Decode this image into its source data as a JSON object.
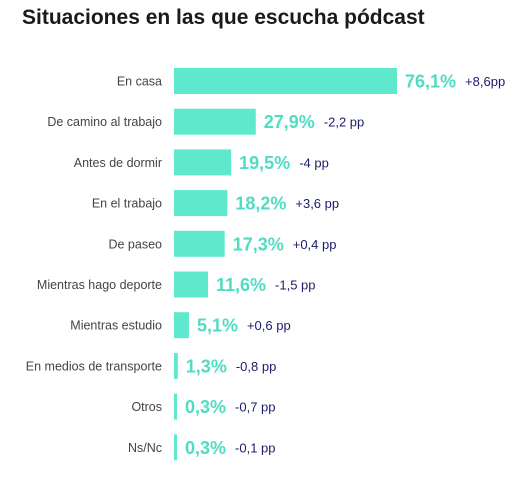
{
  "chart_data": {
    "type": "bar",
    "orientation": "horizontal",
    "title": "Situaciones en las que escucha pódcast",
    "categories": [
      "En casa",
      "De camino al trabajo",
      "Antes de dormir",
      "En el trabajo",
      "De paseo",
      "Mientras hago deporte",
      "Mientras estudio",
      "En medios de transporte",
      "Otros",
      "Ns/Nc"
    ],
    "values": [
      76.1,
      27.9,
      19.5,
      18.2,
      17.3,
      11.6,
      5.1,
      1.3,
      0.3,
      0.3
    ],
    "value_labels": [
      "76,1%",
      "27,9%",
      "19,5%",
      "18,2%",
      "17,3%",
      "11,6%",
      "5,1%",
      "1,3%",
      "0,3%",
      "0,3%"
    ],
    "change_labels": [
      "+8,6pp",
      "-2,2 pp",
      "-4 pp",
      "+3,6 pp",
      "+0,4 pp",
      "-1,5 pp",
      "+0,6 pp",
      "-0,8 pp",
      "-0,7 pp",
      "-0,1 pp"
    ],
    "xlim": [
      0,
      76.1
    ],
    "grid": false,
    "legend": "none",
    "colors": {
      "bar": "#5ee8cc",
      "value_label": "#4fdcc2",
      "change_label": "#1b1b6b",
      "category_label": "#444444",
      "title": "#1a1a1a"
    }
  }
}
